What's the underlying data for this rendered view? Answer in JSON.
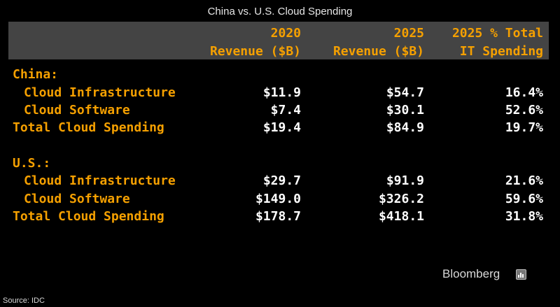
{
  "title": "China vs. U.S. Cloud Spending",
  "headers": {
    "col1": [
      "2020",
      "Revenue ($B)"
    ],
    "col2": [
      "2025",
      "Revenue ($B)"
    ],
    "col3": [
      "2025 % Total",
      "IT Spending"
    ]
  },
  "sections": [
    {
      "name": "China:",
      "rows": [
        {
          "label": "Cloud Infrastructure",
          "v2020": "$11.9",
          "v2025": "$54.7",
          "pct": "16.4%"
        },
        {
          "label": "Cloud Software",
          "v2020": "$7.4",
          "v2025": "$30.1",
          "pct": "52.6%"
        },
        {
          "label": "Total Cloud Spending",
          "v2020": "$19.4",
          "v2025": "$84.9",
          "pct": "19.7%"
        }
      ]
    },
    {
      "name": "U.S.:",
      "rows": [
        {
          "label": "Cloud Infrastructure",
          "v2020": "$29.7",
          "v2025": "$91.9",
          "pct": "21.6%"
        },
        {
          "label": "Cloud Software",
          "v2020": "$149.0",
          "v2025": "$326.2",
          "pct": "59.6%"
        },
        {
          "label": "Total Cloud Spending",
          "v2020": "$178.7",
          "v2025": "$418.1",
          "pct": "31.8%"
        }
      ]
    }
  ],
  "brand": "Bloomberg",
  "source": "Source: IDC",
  "colors": {
    "accent": "#f5a000",
    "header_band": "#444444",
    "background": "#000000"
  },
  "chart_data": {
    "type": "table",
    "title": "China vs. U.S. Cloud Spending",
    "columns": [
      "",
      "2020 Revenue ($B)",
      "2025 Revenue ($B)",
      "2025 % Total IT Spending"
    ],
    "rows": [
      [
        "China:",
        "",
        "",
        ""
      ],
      [
        "Cloud Infrastructure",
        11.9,
        54.7,
        16.4
      ],
      [
        "Cloud Software",
        7.4,
        30.1,
        52.6
      ],
      [
        "Total Cloud Spending",
        19.4,
        84.9,
        19.7
      ],
      [
        "U.S.:",
        "",
        "",
        ""
      ],
      [
        "Cloud Infrastructure",
        29.7,
        91.9,
        21.6
      ],
      [
        "Cloud Software",
        149.0,
        326.2,
        59.6
      ],
      [
        "Total Cloud Spending",
        178.7,
        418.1,
        31.8
      ]
    ]
  }
}
